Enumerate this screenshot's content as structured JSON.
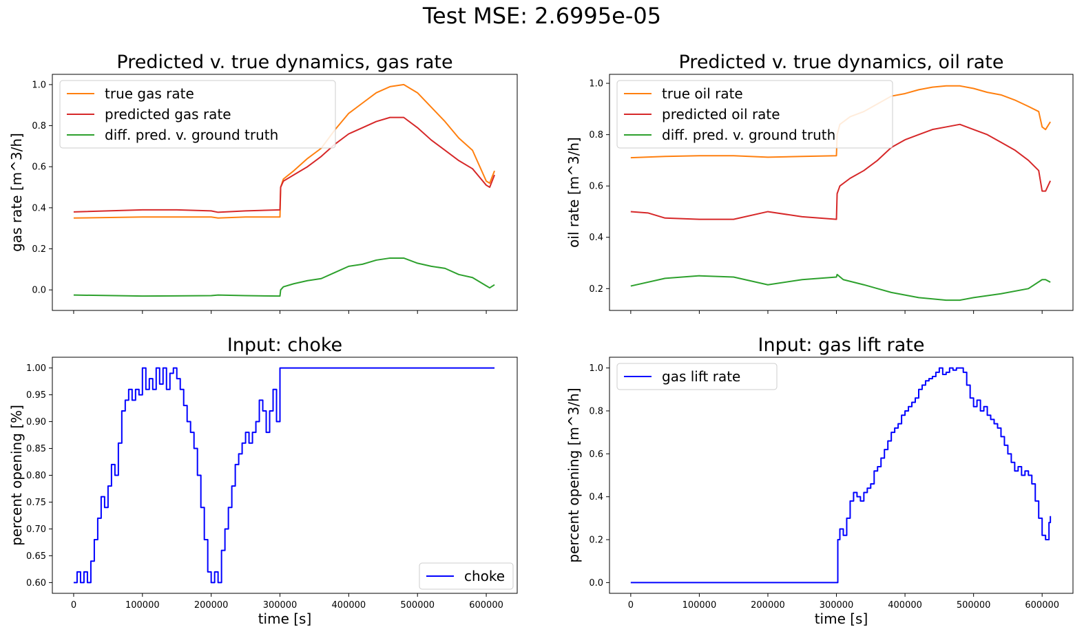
{
  "figure": {
    "suptitle": "Test MSE: 2.6995e-05"
  },
  "chart_data": [
    {
      "type": "line",
      "title": "Predicted v. true dynamics, gas rate",
      "xlabel": "",
      "ylabel": "gas rate [m^3/h]",
      "xlim": [
        -31000,
        645000
      ],
      "ylim": [
        -0.1,
        1.05
      ],
      "xticks": [
        0,
        100000,
        200000,
        300000,
        400000,
        500000,
        600000
      ],
      "xtick_labels": [
        "",
        "",
        "",
        "",
        "",
        "",
        ""
      ],
      "yticks": [
        0.0,
        0.2,
        0.4,
        0.6,
        0.8,
        1.0
      ],
      "ytick_labels": [
        "0.0",
        "0.2",
        "0.4",
        "0.6",
        "0.8",
        "1.0"
      ],
      "legend_position": "upper-left",
      "series": [
        {
          "name": "true gas rate",
          "color": "#ff7f0e",
          "x": [
            0,
            100000,
            200000,
            210000,
            250000,
            300000,
            301000,
            305000,
            320000,
            340000,
            360000,
            380000,
            400000,
            420000,
            440000,
            460000,
            480000,
            500000,
            520000,
            540000,
            560000,
            580000,
            600000,
            605000,
            612000
          ],
          "y": [
            0.35,
            0.355,
            0.355,
            0.35,
            0.355,
            0.355,
            0.5,
            0.54,
            0.58,
            0.64,
            0.69,
            0.78,
            0.86,
            0.91,
            0.96,
            0.99,
            1.0,
            0.96,
            0.89,
            0.82,
            0.74,
            0.68,
            0.53,
            0.52,
            0.58
          ]
        },
        {
          "name": "predicted gas rate",
          "color": "#d62728",
          "x": [
            0,
            100000,
            150000,
            200000,
            210000,
            250000,
            300000,
            301000,
            305000,
            320000,
            340000,
            360000,
            380000,
            400000,
            420000,
            440000,
            460000,
            480000,
            500000,
            520000,
            540000,
            560000,
            580000,
            600000,
            605000,
            612000
          ],
          "y": [
            0.38,
            0.39,
            0.39,
            0.385,
            0.378,
            0.385,
            0.39,
            0.5,
            0.53,
            0.56,
            0.6,
            0.65,
            0.71,
            0.76,
            0.79,
            0.82,
            0.84,
            0.84,
            0.79,
            0.73,
            0.68,
            0.63,
            0.59,
            0.51,
            0.5,
            0.56
          ]
        },
        {
          "name": "diff. pred. v. ground truth",
          "color": "#2ca02c",
          "x": [
            0,
            100000,
            200000,
            210000,
            250000,
            300000,
            301000,
            305000,
            320000,
            340000,
            360000,
            380000,
            400000,
            420000,
            440000,
            460000,
            480000,
            500000,
            520000,
            540000,
            560000,
            580000,
            600000,
            605000,
            612000
          ],
          "y": [
            -0.025,
            -0.03,
            -0.028,
            -0.025,
            -0.028,
            -0.03,
            0.0,
            0.015,
            0.03,
            0.045,
            0.055,
            0.085,
            0.115,
            0.125,
            0.145,
            0.155,
            0.155,
            0.13,
            0.115,
            0.105,
            0.075,
            0.06,
            0.02,
            0.01,
            0.025
          ]
        }
      ]
    },
    {
      "type": "line",
      "title": "Predicted v. true dynamics, oil rate",
      "xlabel": "",
      "ylabel": "oil rate [m^3/h]",
      "xlim": [
        -31000,
        645000
      ],
      "ylim": [
        0.115,
        1.035
      ],
      "xticks": [
        0,
        100000,
        200000,
        300000,
        400000,
        500000,
        600000
      ],
      "xtick_labels": [
        "",
        "",
        "",
        "",
        "",
        "",
        ""
      ],
      "yticks": [
        0.2,
        0.4,
        0.6,
        0.8,
        1.0
      ],
      "ytick_labels": [
        "0.2",
        "0.4",
        "0.6",
        "0.8",
        "1.0"
      ],
      "legend_position": "upper-left",
      "series": [
        {
          "name": "true oil rate",
          "color": "#ff7f0e",
          "x": [
            0,
            50000,
            100000,
            150000,
            200000,
            250000,
            300000,
            301000,
            305000,
            320000,
            340000,
            360000,
            380000,
            400000,
            420000,
            440000,
            460000,
            480000,
            500000,
            520000,
            540000,
            560000,
            580000,
            595000,
            600000,
            605000,
            612000
          ],
          "y": [
            0.71,
            0.715,
            0.718,
            0.718,
            0.712,
            0.715,
            0.718,
            0.8,
            0.84,
            0.87,
            0.89,
            0.92,
            0.95,
            0.96,
            0.975,
            0.985,
            0.99,
            0.99,
            0.98,
            0.965,
            0.955,
            0.935,
            0.91,
            0.89,
            0.83,
            0.82,
            0.85
          ]
        },
        {
          "name": "predicted oil rate",
          "color": "#d62728",
          "x": [
            0,
            25000,
            50000,
            100000,
            150000,
            200000,
            250000,
            300000,
            301000,
            305000,
            320000,
            340000,
            360000,
            380000,
            400000,
            420000,
            440000,
            460000,
            480000,
            500000,
            520000,
            540000,
            560000,
            580000,
            595000,
            600000,
            605000,
            612000
          ],
          "y": [
            0.5,
            0.495,
            0.475,
            0.47,
            0.47,
            0.5,
            0.48,
            0.47,
            0.57,
            0.6,
            0.63,
            0.66,
            0.7,
            0.75,
            0.78,
            0.8,
            0.82,
            0.83,
            0.84,
            0.82,
            0.8,
            0.77,
            0.74,
            0.7,
            0.66,
            0.58,
            0.58,
            0.62
          ]
        },
        {
          "name": "diff. pred. v. ground truth",
          "color": "#2ca02c",
          "x": [
            0,
            50000,
            100000,
            150000,
            200000,
            250000,
            300000,
            301000,
            310000,
            340000,
            380000,
            420000,
            460000,
            480000,
            500000,
            540000,
            580000,
            600000,
            605000,
            612000
          ],
          "y": [
            0.21,
            0.24,
            0.25,
            0.245,
            0.215,
            0.235,
            0.245,
            0.255,
            0.235,
            0.215,
            0.185,
            0.165,
            0.155,
            0.155,
            0.165,
            0.18,
            0.2,
            0.235,
            0.235,
            0.225
          ]
        }
      ]
    },
    {
      "type": "line",
      "title": "Input: choke",
      "xlabel": "time [s]",
      "ylabel": "percent opening [%]",
      "xlim": [
        -31000,
        645000
      ],
      "ylim": [
        0.58,
        1.02
      ],
      "xticks": [
        0,
        100000,
        200000,
        300000,
        400000,
        500000,
        600000
      ],
      "xtick_labels": [
        "0",
        "100000",
        "200000",
        "300000",
        "400000",
        "500000",
        "600000"
      ],
      "yticks": [
        0.6,
        0.65,
        0.7,
        0.75,
        0.8,
        0.85,
        0.9,
        0.95,
        1.0
      ],
      "ytick_labels": [
        "0.60",
        "0.65",
        "0.70",
        "0.75",
        "0.80",
        "0.85",
        "0.90",
        "0.95",
        "1.00"
      ],
      "legend_position": "lower-right",
      "step": true,
      "series": [
        {
          "name": "choke",
          "color": "#0000ff",
          "x": [
            0,
            5000,
            10000,
            15000,
            20000,
            25000,
            30000,
            35000,
            40000,
            45000,
            50000,
            55000,
            60000,
            65000,
            70000,
            75000,
            80000,
            85000,
            90000,
            95000,
            100000,
            105000,
            110000,
            115000,
            120000,
            125000,
            130000,
            135000,
            140000,
            145000,
            150000,
            155000,
            160000,
            165000,
            170000,
            175000,
            180000,
            185000,
            190000,
            195000,
            200000,
            205000,
            210000,
            215000,
            220000,
            225000,
            230000,
            235000,
            240000,
            245000,
            250000,
            255000,
            260000,
            265000,
            270000,
            275000,
            280000,
            285000,
            290000,
            295000,
            300000,
            612000
          ],
          "y": [
            0.6,
            0.62,
            0.6,
            0.62,
            0.6,
            0.64,
            0.68,
            0.72,
            0.76,
            0.74,
            0.78,
            0.82,
            0.8,
            0.86,
            0.92,
            0.94,
            0.96,
            0.94,
            0.96,
            0.95,
            1.0,
            0.96,
            0.98,
            0.96,
            1.0,
            0.97,
            1.0,
            0.96,
            0.99,
            1.0,
            0.98,
            0.96,
            0.93,
            0.9,
            0.88,
            0.85,
            0.8,
            0.74,
            0.68,
            0.62,
            0.6,
            0.62,
            0.6,
            0.66,
            0.7,
            0.74,
            0.78,
            0.82,
            0.84,
            0.86,
            0.88,
            0.86,
            0.88,
            0.9,
            0.94,
            0.92,
            0.88,
            0.92,
            0.96,
            0.9,
            1.0,
            1.0
          ]
        }
      ]
    },
    {
      "type": "line",
      "title": "Input: gas lift rate",
      "xlabel": "time [s]",
      "ylabel": "percent opening [m^3/h]",
      "xlim": [
        -31000,
        645000
      ],
      "ylim": [
        -0.05,
        1.05
      ],
      "xticks": [
        0,
        100000,
        200000,
        300000,
        400000,
        500000,
        600000
      ],
      "xtick_labels": [
        "0",
        "100000",
        "200000",
        "300000",
        "400000",
        "500000",
        "600000"
      ],
      "yticks": [
        0.0,
        0.2,
        0.4,
        0.6,
        0.8,
        1.0
      ],
      "ytick_labels": [
        "0.0",
        "0.2",
        "0.4",
        "0.6",
        "0.8",
        "1.0"
      ],
      "legend_position": "upper-left",
      "step": true,
      "series": [
        {
          "name": "gas lift rate",
          "color": "#0000ff",
          "x": [
            0,
            300000,
            302000,
            305000,
            310000,
            315000,
            320000,
            325000,
            330000,
            335000,
            340000,
            345000,
            350000,
            355000,
            360000,
            365000,
            370000,
            375000,
            380000,
            385000,
            390000,
            395000,
            400000,
            405000,
            410000,
            415000,
            420000,
            425000,
            430000,
            435000,
            440000,
            445000,
            450000,
            455000,
            460000,
            465000,
            470000,
            475000,
            480000,
            485000,
            490000,
            495000,
            500000,
            505000,
            510000,
            515000,
            520000,
            525000,
            530000,
            535000,
            540000,
            545000,
            550000,
            555000,
            560000,
            565000,
            570000,
            575000,
            580000,
            585000,
            590000,
            595000,
            600000,
            605000,
            610000,
            612000
          ],
          "y": [
            0.0,
            0.0,
            0.2,
            0.25,
            0.22,
            0.3,
            0.38,
            0.42,
            0.4,
            0.38,
            0.42,
            0.44,
            0.46,
            0.52,
            0.54,
            0.58,
            0.62,
            0.66,
            0.7,
            0.72,
            0.74,
            0.78,
            0.8,
            0.82,
            0.84,
            0.86,
            0.9,
            0.92,
            0.94,
            0.95,
            0.96,
            0.98,
            1.0,
            0.97,
            0.98,
            1.0,
            0.99,
            1.0,
            1.0,
            0.98,
            0.92,
            0.86,
            0.82,
            0.85,
            0.8,
            0.82,
            0.78,
            0.76,
            0.74,
            0.72,
            0.68,
            0.64,
            0.6,
            0.56,
            0.52,
            0.54,
            0.5,
            0.52,
            0.5,
            0.46,
            0.38,
            0.3,
            0.22,
            0.2,
            0.28,
            0.31
          ]
        }
      ]
    }
  ]
}
